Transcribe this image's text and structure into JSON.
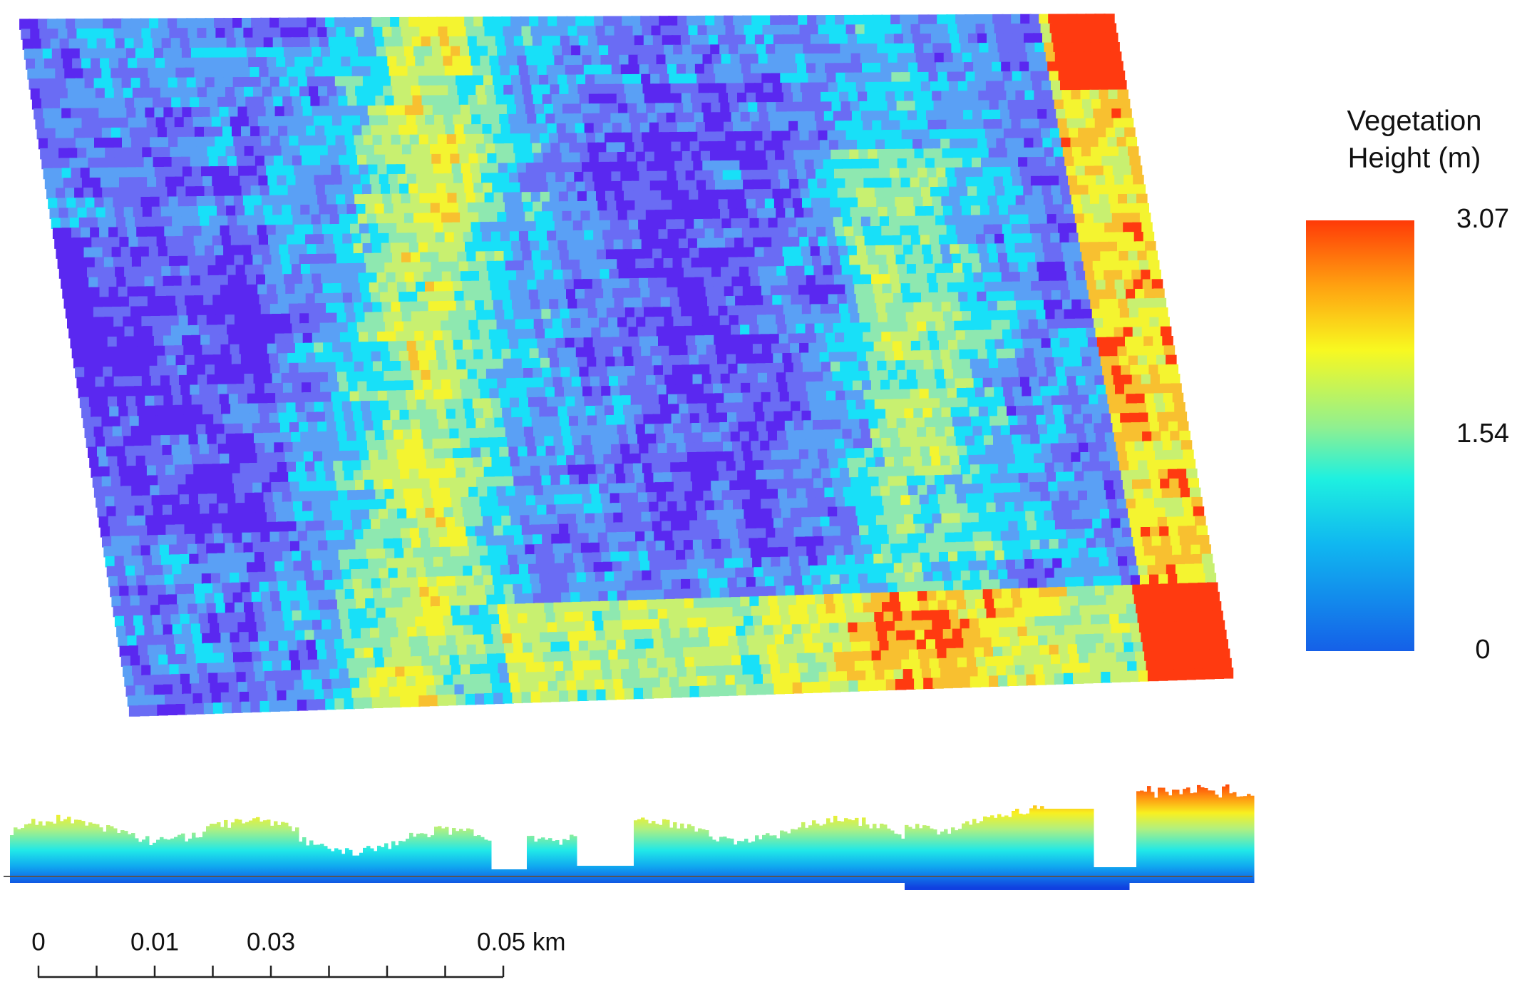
{
  "legend": {
    "title": [
      "Vegetation",
      "Height (m)"
    ],
    "range": [
      0,
      3.07
    ],
    "ticks": [
      3.07,
      1.54,
      0
    ]
  },
  "scale_bar": {
    "labels": [
      "0",
      "0.01",
      "0.03",
      "0.05 km"
    ]
  }
}
